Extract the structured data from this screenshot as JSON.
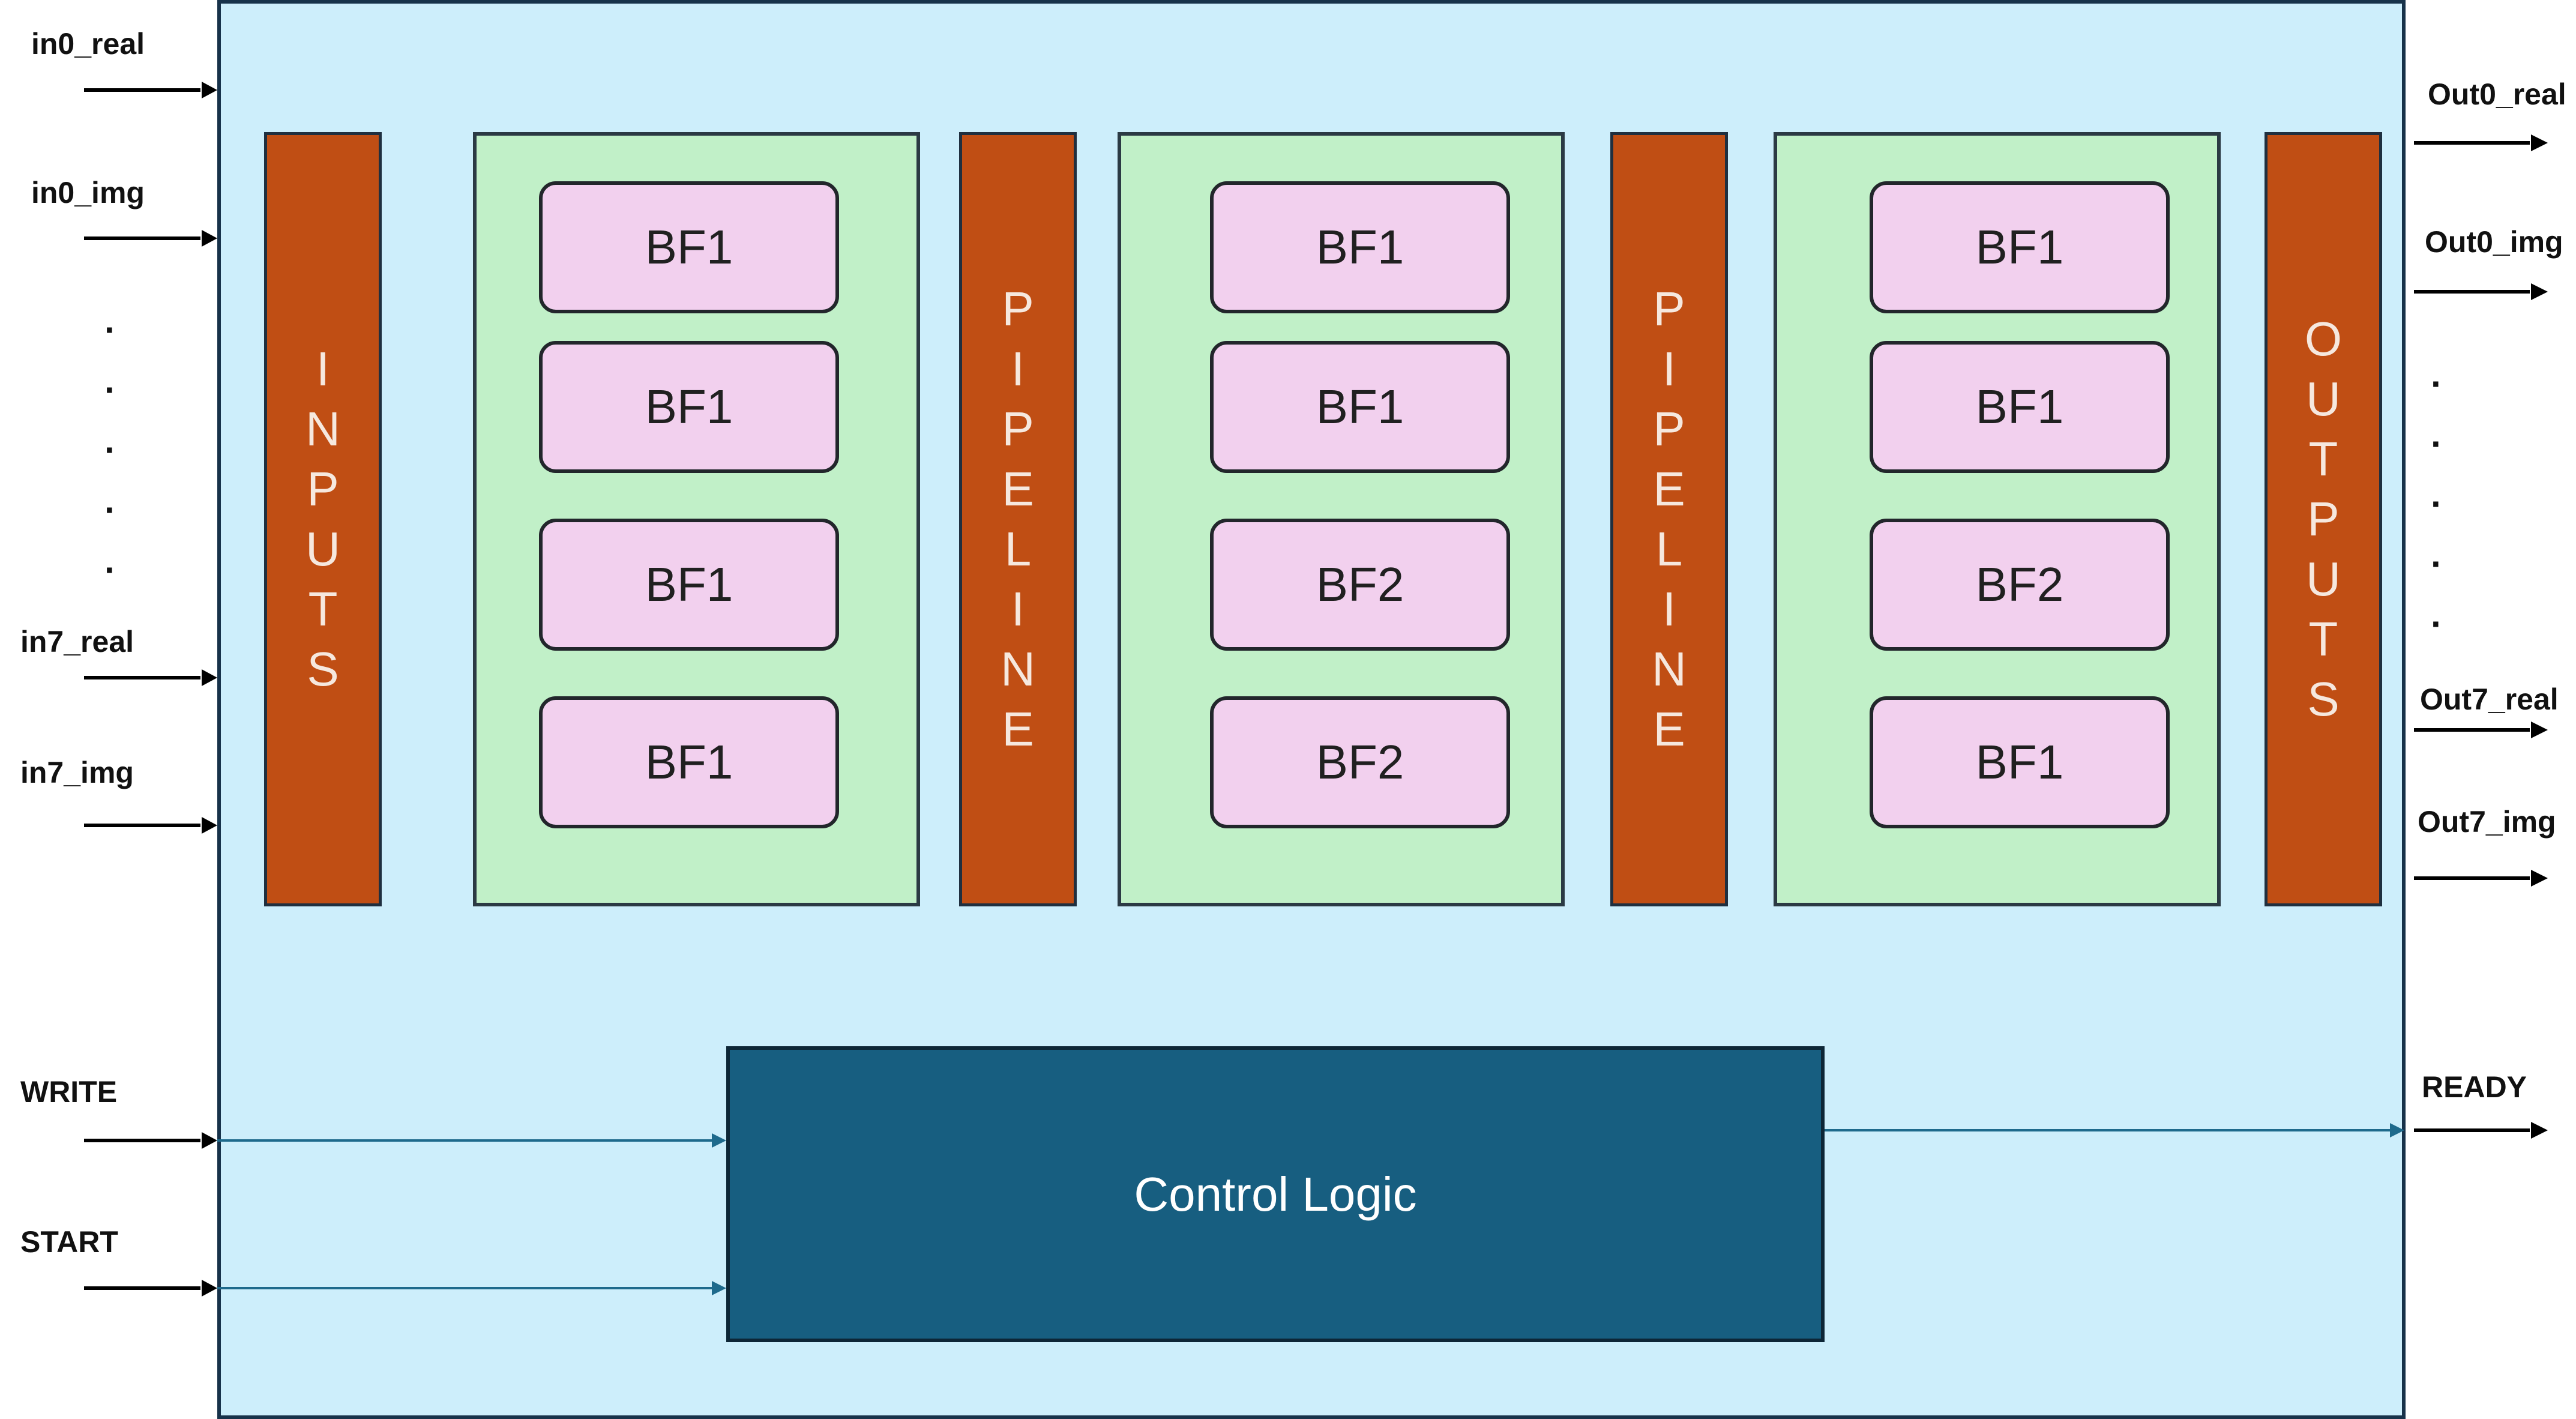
{
  "colors": {
    "chip_bg": "#cdeefb",
    "bar": "#c04e14",
    "stage": "#c1f0c8",
    "bf": "#f2d0ee",
    "control": "#175e80",
    "wire": "#1e6a8c"
  },
  "bars": {
    "inputs": "I\nN\nP\nU\nT\nS",
    "pipeline1": "P\nI\nP\nE\nL\nI\nN\nE",
    "pipeline2": "P\nI\nP\nE\nL\nI\nN\nE",
    "outputs": "O\nU\nT\nP\nU\nT\nS"
  },
  "stages": [
    {
      "blocks": [
        "BF1",
        "BF1",
        "BF1",
        "BF1"
      ]
    },
    {
      "blocks": [
        "BF1",
        "BF1",
        "BF2",
        "BF2"
      ]
    },
    {
      "blocks": [
        "BF1",
        "BF1",
        "BF2",
        "BF1"
      ]
    }
  ],
  "control": {
    "label": "Control Logic"
  },
  "inputs": {
    "in0_real": "in0_real",
    "in0_img": "in0_img",
    "in7_real": "in7_real",
    "in7_img": "in7_img",
    "write": "WRITE",
    "start": "START"
  },
  "outputs": {
    "out0_real": "Out0_real",
    "out0_img": "Out0_img",
    "out7_real": "Out7_real",
    "out7_img": "Out7_img",
    "ready": "READY"
  },
  "ellipsis": "·"
}
